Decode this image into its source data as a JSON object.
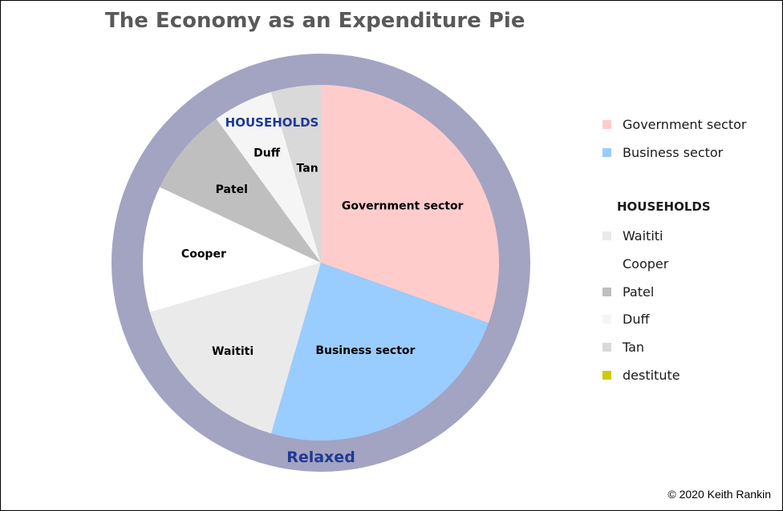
{
  "title": "The Economy as an Expenditure Pie",
  "copyright": "© 2020 Keith Rankin",
  "chart_data": {
    "type": "pie",
    "title": "The Economy as an Expenditure Pie",
    "ring_label": "Relaxed",
    "center_overlay_label": "HOUSEHOLDS",
    "slices": [
      {
        "label": "Government sector",
        "value": 30.5,
        "color": "#FFCCCC",
        "label_shown": true
      },
      {
        "label": "Business sector",
        "value": 24.0,
        "color": "#99CCFF",
        "label_shown": true
      },
      {
        "label": "Waititi",
        "value": 16.0,
        "color": "#EAEAEA",
        "label_shown": true
      },
      {
        "label": "Cooper",
        "value": 11.5,
        "color": "#FFFFFF",
        "label_shown": true
      },
      {
        "label": "Patel",
        "value": 8.0,
        "color": "#BFBFBF",
        "label_shown": true
      },
      {
        "label": "Duff",
        "value": 5.5,
        "color": "#F5F5F5",
        "label_shown": true
      },
      {
        "label": "Tan",
        "value": 4.5,
        "color": "#D9D9D9",
        "label_shown": true
      },
      {
        "label": "destitute",
        "value": 0,
        "color": "#CCCC00",
        "label_shown": false
      }
    ],
    "legend": {
      "placement": "right",
      "sector_items": [
        {
          "label": "Government sector",
          "color": "#FFCCCC"
        },
        {
          "label": "Business sector",
          "color": "#99CCFF"
        }
      ],
      "households_heading": "HOUSEHOLDS",
      "household_items": [
        {
          "label": "Waititi",
          "color": "#EAEAEA"
        },
        {
          "label": "Cooper",
          "color": "#FFFFFF"
        },
        {
          "label": "Patel",
          "color": "#BFBFBF"
        },
        {
          "label": "Duff",
          "color": "#F5F5F5"
        },
        {
          "label": "Tan",
          "color": "#D9D9D9"
        },
        {
          "label": "destitute",
          "color": "#CCCC00"
        }
      ]
    },
    "ring_color": "#A3A3C2"
  }
}
